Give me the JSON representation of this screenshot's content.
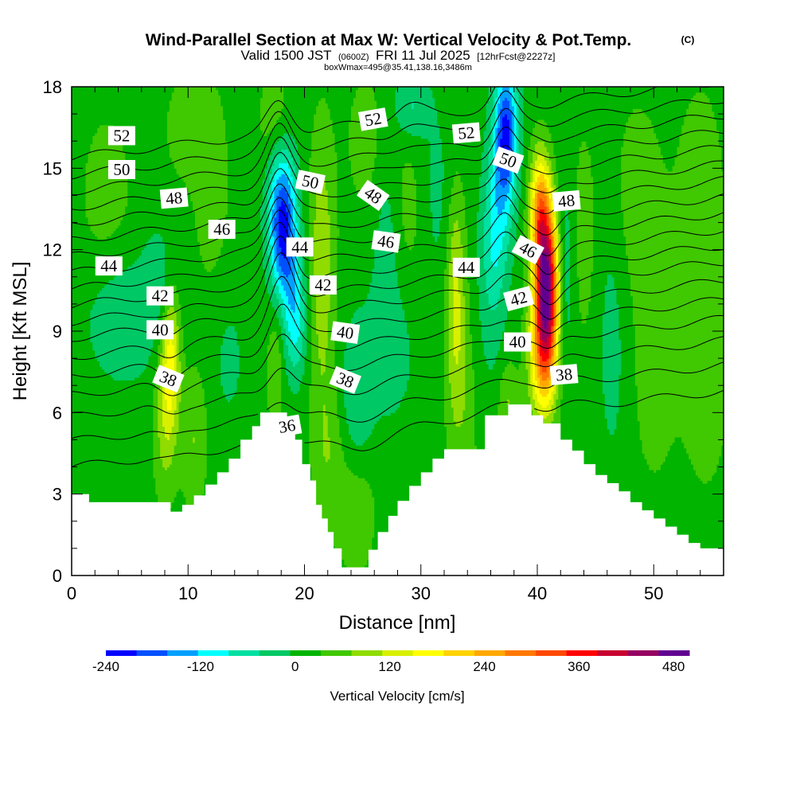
{
  "header": {
    "title": "Wind-Parallel Section at Max W: Vertical Velocity & Pot.Temp.",
    "copyright": "(C)",
    "valid_prefix": "Valid 1500 JST",
    "valid_utc": "(0600Z)",
    "valid_date": "FRI 11 Jul 2025",
    "forecast": "[12hrFcst@2227z]",
    "box_info": "boxWmax=495@35.41,138.16,3486m"
  },
  "chart_data": {
    "type": "heatmap",
    "xlabel": "Distance [nm]",
    "ylabel": "Height [Kft MSL]",
    "xlim": [
      0,
      56
    ],
    "ylim": [
      0,
      18
    ],
    "x_ticks": [
      "0",
      "10",
      "20",
      "30",
      "40",
      "50"
    ],
    "y_ticks": [
      "0",
      "3",
      "6",
      "9",
      "12",
      "15",
      "18"
    ],
    "colorbar": {
      "title": "Vertical Velocity [cm/s]",
      "min": -240,
      "max": 500,
      "step": 40,
      "tick_labels": [
        "-240",
        "-120",
        "0",
        "120",
        "240",
        "360",
        "480"
      ],
      "colors": [
        "#0000ff",
        "#0050ff",
        "#00a0ff",
        "#00ffff",
        "#00e0a0",
        "#00c864",
        "#00b400",
        "#40c800",
        "#90dc00",
        "#d8f000",
        "#ffff00",
        "#ffd200",
        "#ffa800",
        "#ff7800",
        "#ff4800",
        "#ff0000",
        "#c80030",
        "#960060",
        "#600090"
      ]
    },
    "terrain_kft": [
      [
        0,
        3.0
      ],
      [
        1.5,
        3.0
      ],
      [
        1.5,
        2.7
      ],
      [
        8.5,
        2.7
      ],
      [
        8.5,
        2.35
      ],
      [
        9.5,
        2.35
      ],
      [
        9.5,
        2.6
      ],
      [
        10.5,
        2.6
      ],
      [
        10.5,
        2.95
      ],
      [
        11.5,
        2.95
      ],
      [
        11.5,
        3.35
      ],
      [
        12.5,
        3.35
      ],
      [
        12.5,
        3.8
      ],
      [
        13.5,
        3.8
      ],
      [
        13.5,
        4.3
      ],
      [
        14.5,
        4.3
      ],
      [
        14.5,
        5.0
      ],
      [
        15.5,
        5.0
      ],
      [
        15.5,
        5.5
      ],
      [
        16.2,
        5.5
      ],
      [
        16.2,
        6.0
      ],
      [
        18.0,
        6.0
      ],
      [
        18.5,
        6.0
      ],
      [
        18.5,
        5.6
      ],
      [
        19.2,
        5.6
      ],
      [
        19.2,
        5.0
      ],
      [
        19.8,
        5.0
      ],
      [
        19.8,
        4.1
      ],
      [
        20.5,
        4.1
      ],
      [
        20.5,
        3.5
      ],
      [
        21.0,
        3.5
      ],
      [
        21.0,
        2.6
      ],
      [
        21.5,
        2.6
      ],
      [
        21.5,
        2.1
      ],
      [
        22.0,
        2.1
      ],
      [
        22.0,
        1.6
      ],
      [
        22.5,
        1.6
      ],
      [
        22.5,
        1.0
      ],
      [
        23.2,
        1.0
      ],
      [
        23.2,
        0.3
      ],
      [
        25.5,
        0.3
      ],
      [
        25.5,
        0.95
      ],
      [
        26.3,
        0.95
      ],
      [
        26.3,
        1.6
      ],
      [
        27.2,
        1.6
      ],
      [
        27.2,
        2.2
      ],
      [
        28.0,
        2.2
      ],
      [
        28.0,
        2.75
      ],
      [
        29.0,
        2.75
      ],
      [
        29.0,
        3.3
      ],
      [
        30.0,
        3.3
      ],
      [
        30.0,
        3.8
      ],
      [
        31.0,
        3.8
      ],
      [
        31.0,
        4.3
      ],
      [
        32.0,
        4.3
      ],
      [
        32.0,
        4.65
      ],
      [
        35.5,
        4.65
      ],
      [
        35.5,
        5.9
      ],
      [
        37.5,
        5.9
      ],
      [
        37.5,
        6.3
      ],
      [
        38.5,
        6.3
      ],
      [
        39.5,
        6.3
      ],
      [
        39.5,
        5.9
      ],
      [
        40.5,
        5.9
      ],
      [
        40.5,
        5.6
      ],
      [
        42.0,
        5.6
      ],
      [
        42.0,
        5.0
      ],
      [
        43.0,
        5.0
      ],
      [
        43.0,
        4.6
      ],
      [
        44.0,
        4.6
      ],
      [
        44.0,
        4.1
      ],
      [
        45.0,
        4.1
      ],
      [
        45.0,
        3.7
      ],
      [
        46.0,
        3.7
      ],
      [
        46.0,
        3.4
      ],
      [
        47.0,
        3.4
      ],
      [
        47.0,
        3.1
      ],
      [
        48.0,
        3.1
      ],
      [
        48.0,
        2.7
      ],
      [
        49.0,
        2.7
      ],
      [
        49.0,
        2.4
      ],
      [
        50.0,
        2.4
      ],
      [
        50.0,
        2.1
      ],
      [
        51.0,
        2.1
      ],
      [
        51.0,
        1.8
      ],
      [
        52.0,
        1.8
      ],
      [
        52.0,
        1.5
      ],
      [
        53.0,
        1.5
      ],
      [
        53.0,
        1.2
      ],
      [
        54.0,
        1.2
      ],
      [
        54.0,
        1.0
      ],
      [
        56.0,
        1.0
      ]
    ],
    "w_features_cms": [
      {
        "x": 8.5,
        "y": 8.0,
        "sx": 0.55,
        "sy": 1.8,
        "w": 150
      },
      {
        "x": 8.0,
        "y": 5.5,
        "sx": 0.7,
        "sy": 2.0,
        "w": 70
      },
      {
        "x": 10.5,
        "y": 5.0,
        "sx": 0.8,
        "sy": 1.8,
        "w": 60
      },
      {
        "x": 4.5,
        "y": 9.5,
        "sx": 2.2,
        "sy": 1.6,
        "w": -60
      },
      {
        "x": 7.5,
        "y": 11.0,
        "sx": 1.0,
        "sy": 1.3,
        "w": -40
      },
      {
        "x": 12.0,
        "y": 14.5,
        "sx": 1.2,
        "sy": 3.0,
        "w": 40
      },
      {
        "x": 3.0,
        "y": 14.0,
        "sx": 1.8,
        "sy": 2.5,
        "w": 35
      },
      {
        "x": 9.5,
        "y": 16.5,
        "sx": 1.2,
        "sy": 1.5,
        "w": 35
      },
      {
        "x": 13.5,
        "y": 8.0,
        "sx": 1.0,
        "sy": 1.8,
        "w": -30
      },
      {
        "x": 18.2,
        "y": 12.3,
        "sx": 0.8,
        "sy": 1.5,
        "w": -200
      },
      {
        "x": 19.2,
        "y": 9.5,
        "sx": 0.7,
        "sy": 1.5,
        "w": -120
      },
      {
        "x": 18.0,
        "y": 14.5,
        "sx": 0.9,
        "sy": 1.5,
        "w": -120
      },
      {
        "x": 17.5,
        "y": 16.5,
        "sx": 1.0,
        "sy": 1.5,
        "w": 60
      },
      {
        "x": 21.5,
        "y": 11.5,
        "sx": 0.8,
        "sy": 3.5,
        "w": 90
      },
      {
        "x": 17.5,
        "y": 7.5,
        "sx": 0.5,
        "sy": 1.5,
        "w": 60
      },
      {
        "x": 22.0,
        "y": 4.5,
        "sx": 1.0,
        "sy": 2.0,
        "w": 50
      },
      {
        "x": 24.5,
        "y": 2.5,
        "sx": 1.2,
        "sy": 1.8,
        "w": 50
      },
      {
        "x": 24.5,
        "y": 6.5,
        "sx": 1.0,
        "sy": 2.0,
        "w": -60
      },
      {
        "x": 27.5,
        "y": 8.5,
        "sx": 1.5,
        "sy": 2.0,
        "w": -40
      },
      {
        "x": 27.0,
        "y": 13.0,
        "sx": 0.8,
        "sy": 3.0,
        "w": -40
      },
      {
        "x": 25.5,
        "y": 16.0,
        "sx": 1.4,
        "sy": 2.0,
        "w": 40
      },
      {
        "x": 29.0,
        "y": 13.5,
        "sx": 1.0,
        "sy": 2.5,
        "w": 35
      },
      {
        "x": 29.2,
        "y": 17.3,
        "sx": 1.0,
        "sy": 0.9,
        "w": -70
      },
      {
        "x": 33.0,
        "y": 10.5,
        "sx": 0.6,
        "sy": 2.8,
        "w": 110
      },
      {
        "x": 33.5,
        "y": 6.5,
        "sx": 0.9,
        "sy": 2.0,
        "w": 45
      },
      {
        "x": 31.5,
        "y": 14.0,
        "sx": 1.2,
        "sy": 2.5,
        "w": -30
      },
      {
        "x": 37.3,
        "y": 16.3,
        "sx": 0.7,
        "sy": 1.8,
        "w": -230
      },
      {
        "x": 36.5,
        "y": 13.0,
        "sx": 0.8,
        "sy": 2.0,
        "w": -90
      },
      {
        "x": 36.0,
        "y": 10.5,
        "sx": 0.8,
        "sy": 2.5,
        "w": -40
      },
      {
        "x": 40.8,
        "y": 10.8,
        "sx": 0.75,
        "sy": 2.0,
        "w": 440
      },
      {
        "x": 40.2,
        "y": 13.5,
        "sx": 0.6,
        "sy": 1.5,
        "w": 200
      },
      {
        "x": 40.5,
        "y": 8.0,
        "sx": 0.85,
        "sy": 1.6,
        "w": 200
      },
      {
        "x": 37.5,
        "y": 6.5,
        "sx": 0.6,
        "sy": 1.0,
        "w": 60
      },
      {
        "x": 42.3,
        "y": 11.0,
        "sx": 0.6,
        "sy": 2.5,
        "w": -70
      },
      {
        "x": 44.0,
        "y": 12.5,
        "sx": 0.8,
        "sy": 3.0,
        "w": 40
      },
      {
        "x": 46.5,
        "y": 9.0,
        "sx": 1.0,
        "sy": 4.0,
        "w": -35
      },
      {
        "x": 48.5,
        "y": 14.0,
        "sx": 1.5,
        "sy": 2.5,
        "w": 45
      },
      {
        "x": 50.0,
        "y": 8.0,
        "sx": 1.5,
        "sy": 3.5,
        "w": 40
      },
      {
        "x": 54.0,
        "y": 14.0,
        "sx": 1.5,
        "sy": 3.0,
        "w": 45
      },
      {
        "x": 54.5,
        "y": 7.0,
        "sx": 1.5,
        "sy": 3.0,
        "w": 40
      },
      {
        "x": 38.5,
        "y": 3.0,
        "sx": 3.0,
        "sy": 1.5,
        "w": 35
      }
    ],
    "theta_levels_c": [
      36,
      37,
      38,
      39,
      40,
      41,
      42,
      43,
      44,
      45,
      46,
      47,
      48,
      49,
      50,
      51,
      52,
      53
    ],
    "theta_base_heights_kft": [
      5.4,
      6.35,
      7.25,
      8.05,
      8.75,
      9.45,
      10.15,
      10.75,
      11.35,
      11.95,
      12.55,
      13.15,
      13.75,
      14.35,
      14.95,
      15.55,
      16.15,
      16.8
    ],
    "theta_perturbations": [
      {
        "x": 17.8,
        "y": 13.0,
        "sx": 1.0,
        "sy": 4.0,
        "dy": 1.8
      },
      {
        "x": 18.3,
        "y": 9.5,
        "sx": 1.0,
        "sy": 2.0,
        "dy": 0.8
      },
      {
        "x": 37.2,
        "y": 15.0,
        "sx": 0.9,
        "sy": 3.5,
        "dy": 1.2
      },
      {
        "x": 41.0,
        "y": 10.5,
        "sx": 0.9,
        "sy": 3.0,
        "dy": -0.8
      },
      {
        "x": 8.5,
        "y": 8.0,
        "sx": 1.0,
        "sy": 2.0,
        "dy": -0.4
      },
      {
        "x": 24.5,
        "y": 3.5,
        "sx": 2.0,
        "sy": 2.5,
        "dy": -0.8
      },
      {
        "x": 38.5,
        "y": 5.0,
        "sx": 3.5,
        "sy": 2.0,
        "dy": 0.4
      },
      {
        "x": 29.0,
        "y": 17.0,
        "sx": 1.2,
        "sy": 1.5,
        "dy": 0.5
      }
    ],
    "contour_labels": [
      {
        "text": "52",
        "x": 4.3,
        "y": 16.2,
        "rot": 0
      },
      {
        "text": "50",
        "x": 4.3,
        "y": 14.95,
        "rot": 0
      },
      {
        "text": "48",
        "x": 8.8,
        "y": 13.9,
        "rot": -5
      },
      {
        "text": "46",
        "x": 12.9,
        "y": 12.75,
        "rot": 0
      },
      {
        "text": "44",
        "x": 3.2,
        "y": 11.4,
        "rot": 0
      },
      {
        "text": "42",
        "x": 7.6,
        "y": 10.3,
        "rot": 0
      },
      {
        "text": "40",
        "x": 7.6,
        "y": 9.05,
        "rot": 0
      },
      {
        "text": "38",
        "x": 8.3,
        "y": 7.25,
        "rot": 22
      },
      {
        "text": "50",
        "x": 20.5,
        "y": 14.5,
        "rot": 12
      },
      {
        "text": "44",
        "x": 19.6,
        "y": 12.1,
        "rot": 0
      },
      {
        "text": "42",
        "x": 21.6,
        "y": 10.7,
        "rot": 0
      },
      {
        "text": "52",
        "x": 25.9,
        "y": 16.8,
        "rot": -10
      },
      {
        "text": "48",
        "x": 25.9,
        "y": 14.0,
        "rot": 35
      },
      {
        "text": "46",
        "x": 27.0,
        "y": 12.3,
        "rot": 8
      },
      {
        "text": "40",
        "x": 23.5,
        "y": 8.95,
        "rot": 8
      },
      {
        "text": "38",
        "x": 23.5,
        "y": 7.2,
        "rot": 22
      },
      {
        "text": "36",
        "x": 18.5,
        "y": 5.5,
        "rot": -10
      },
      {
        "text": "52",
        "x": 33.9,
        "y": 16.3,
        "rot": -5
      },
      {
        "text": "44",
        "x": 33.9,
        "y": 11.35,
        "rot": 0
      },
      {
        "text": "50",
        "x": 37.5,
        "y": 15.3,
        "rot": 20
      },
      {
        "text": "48",
        "x": 42.5,
        "y": 13.8,
        "rot": -5
      },
      {
        "text": "46",
        "x": 39.2,
        "y": 12.0,
        "rot": 28
      },
      {
        "text": "42",
        "x": 38.4,
        "y": 10.2,
        "rot": -15
      },
      {
        "text": "40",
        "x": 38.3,
        "y": 8.6,
        "rot": 0
      },
      {
        "text": "38",
        "x": 42.3,
        "y": 7.4,
        "rot": -5
      }
    ]
  }
}
